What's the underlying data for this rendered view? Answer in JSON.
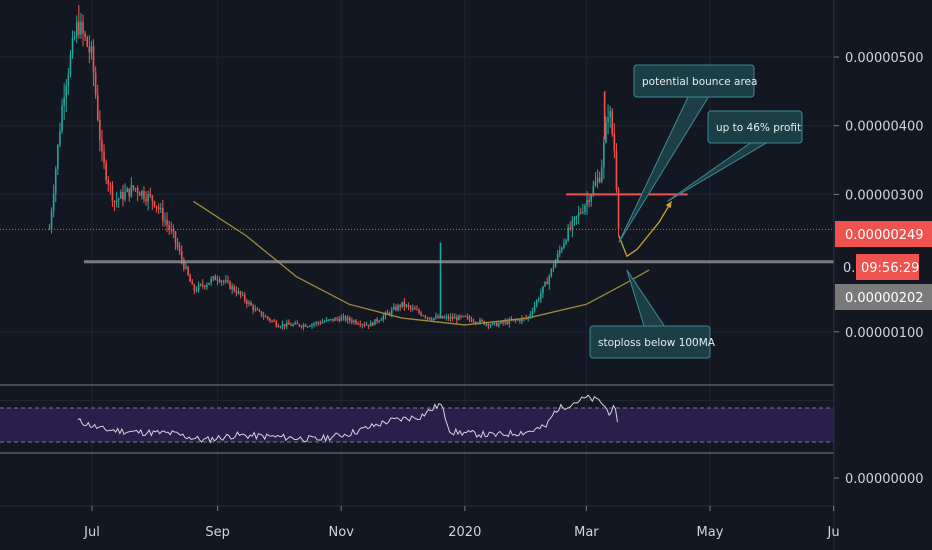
{
  "chart_data": {
    "type": "candlestick",
    "price_axis": {
      "ticks": [
        {
          "value": 5e-06,
          "label": "0.00000500"
        },
        {
          "value": 4e-06,
          "label": "0.00000400"
        },
        {
          "value": 3e-06,
          "label": "0.00000300"
        },
        {
          "value": 1e-06,
          "label": "0.00000100"
        },
        {
          "value": 0.0,
          "label": "0.00000000"
        }
      ],
      "partial_label": "0."
    },
    "time_axis": {
      "ticks": [
        {
          "date": "2019-07-01",
          "label": "Jul"
        },
        {
          "date": "2019-09-01",
          "label": "Sep"
        },
        {
          "date": "2019-11-01",
          "label": "Nov"
        },
        {
          "date": "2020-01-01",
          "label": "2020"
        },
        {
          "date": "2020-03-01",
          "label": "Mar"
        },
        {
          "date": "2020-05-01",
          "label": "May"
        },
        {
          "date": "2020-07-01",
          "label": "Ju"
        }
      ]
    },
    "last_price": {
      "value": 2.49e-06,
      "label": "0.00000249",
      "color": "#ef5350"
    },
    "countdown": {
      "label": "09:56:29",
      "color": "#ef5350"
    },
    "ma_price": {
      "value": 2.02e-06,
      "label": "0.00000202",
      "color": "#7a7a7a"
    },
    "horizontal_lines": [
      {
        "name": "support",
        "value": 2.02e-06,
        "color": "#9e9e9e"
      },
      {
        "name": "resistance",
        "value": 3e-06,
        "color": "#ef5350"
      }
    ],
    "moving_average": {
      "name": "100MA",
      "color": "#a08a3a",
      "points": [
        {
          "date": "2019-08-20",
          "value": 2.9e-06
        },
        {
          "date": "2019-09-15",
          "value": 2.4e-06
        },
        {
          "date": "2019-10-10",
          "value": 1.8e-06
        },
        {
          "date": "2019-11-05",
          "value": 1.4e-06
        },
        {
          "date": "2019-12-01",
          "value": 1.2e-06
        },
        {
          "date": "2020-01-01",
          "value": 1.1e-06
        },
        {
          "date": "2020-02-01",
          "value": 1.2e-06
        },
        {
          "date": "2020-03-01",
          "value": 1.4e-06
        },
        {
          "date": "2020-03-20",
          "value": 1.7e-06
        },
        {
          "date": "2020-04-01",
          "value": 1.9e-06
        }
      ]
    },
    "projection": {
      "color": "#c8a23c",
      "points": [
        {
          "date": "2020-03-17",
          "value": 2.4e-06
        },
        {
          "date": "2020-03-21",
          "value": 2.1e-06
        },
        {
          "date": "2020-03-26",
          "value": 2.2e-06
        },
        {
          "date": "2020-04-06",
          "value": 2.6e-06
        },
        {
          "date": "2020-04-12",
          "value": 2.9e-06
        }
      ]
    },
    "price_path": [
      {
        "date": "2019-06-10",
        "value": 2.5e-06
      },
      {
        "date": "2019-06-17",
        "value": 4.5e-06
      },
      {
        "date": "2019-06-24",
        "value": 5.5e-06
      },
      {
        "date": "2019-07-01",
        "value": 5e-06
      },
      {
        "date": "2019-07-06",
        "value": 3.5e-06
      },
      {
        "date": "2019-07-12",
        "value": 2.9e-06
      },
      {
        "date": "2019-07-22",
        "value": 3.1e-06
      },
      {
        "date": "2019-08-01",
        "value": 2.9e-06
      },
      {
        "date": "2019-08-10",
        "value": 2.4e-06
      },
      {
        "date": "2019-08-20",
        "value": 1.6e-06
      },
      {
        "date": "2019-09-01",
        "value": 1.8e-06
      },
      {
        "date": "2019-09-10",
        "value": 1.6e-06
      },
      {
        "date": "2019-09-20",
        "value": 1.3e-06
      },
      {
        "date": "2019-10-01",
        "value": 1.1e-06
      },
      {
        "date": "2019-10-15",
        "value": 1.1e-06
      },
      {
        "date": "2019-11-01",
        "value": 1.2e-06
      },
      {
        "date": "2019-11-15",
        "value": 1.1e-06
      },
      {
        "date": "2019-12-01",
        "value": 1.4e-06
      },
      {
        "date": "2019-12-15",
        "value": 1.2e-06
      },
      {
        "date": "2020-01-01",
        "value": 1.2e-06
      },
      {
        "date": "2020-01-15",
        "value": 1.1e-06
      },
      {
        "date": "2020-02-01",
        "value": 1.2e-06
      },
      {
        "date": "2020-02-10",
        "value": 1.7e-06
      },
      {
        "date": "2020-02-20",
        "value": 2.4e-06
      },
      {
        "date": "2020-03-01",
        "value": 2.9e-06
      },
      {
        "date": "2020-03-08",
        "value": 3.3e-06
      },
      {
        "date": "2020-03-12",
        "value": 4.3e-06
      },
      {
        "date": "2020-03-15",
        "value": 3.6e-06
      },
      {
        "date": "2020-03-17",
        "value": 2.5e-06
      }
    ],
    "spikes": [
      {
        "date": "2019-12-20",
        "value": 2.3e-06
      },
      {
        "date": "2020-03-10",
        "value": 4.5e-06
      }
    ],
    "annotations": [
      {
        "name": "potential-bounce-area",
        "text": "potential bounce area",
        "target": {
          "date": "2020-03-17",
          "value": 2.3e-06
        }
      },
      {
        "name": "up-to-46-profit",
        "text": "up to 46% profit",
        "target": {
          "date": "2020-04-10",
          "value": 2.9e-06
        }
      },
      {
        "name": "stoploss-below-100ma",
        "text": "stoploss below 100MA",
        "target": {
          "date": "2020-03-21",
          "value": 1.9e-06
        }
      }
    ],
    "oscillator": {
      "upper_band": 70,
      "lower_band": 30,
      "band_color": "#2a1f4a",
      "line_color": "#d1d4dc",
      "points": [
        {
          "date": "2019-06-24",
          "value": 55
        },
        {
          "date": "2019-07-06",
          "value": 45
        },
        {
          "date": "2019-07-20",
          "value": 42
        },
        {
          "date": "2019-08-10",
          "value": 40
        },
        {
          "date": "2019-08-25",
          "value": 32
        },
        {
          "date": "2019-09-10",
          "value": 38
        },
        {
          "date": "2019-10-01",
          "value": 36
        },
        {
          "date": "2019-10-20",
          "value": 33
        },
        {
          "date": "2019-11-05",
          "value": 40
        },
        {
          "date": "2019-11-25",
          "value": 55
        },
        {
          "date": "2019-12-10",
          "value": 60
        },
        {
          "date": "2019-12-20",
          "value": 75
        },
        {
          "date": "2019-12-25",
          "value": 42
        },
        {
          "date": "2020-01-15",
          "value": 38
        },
        {
          "date": "2020-02-01",
          "value": 42
        },
        {
          "date": "2020-02-10",
          "value": 48
        },
        {
          "date": "2020-02-15",
          "value": 68
        },
        {
          "date": "2020-03-01",
          "value": 82
        },
        {
          "date": "2020-03-08",
          "value": 78
        },
        {
          "date": "2020-03-12",
          "value": 65
        },
        {
          "date": "2020-03-15",
          "value": 70
        },
        {
          "date": "2020-03-17",
          "value": 40
        }
      ]
    },
    "colors": {
      "background": "#131722",
      "bull": "#26a69a",
      "bear": "#ef5350",
      "grid": "#1f2430",
      "axis_text": "#d1d4dc",
      "annotation_fill": "#1c3e47",
      "annotation_border": "#3c8a96"
    }
  }
}
